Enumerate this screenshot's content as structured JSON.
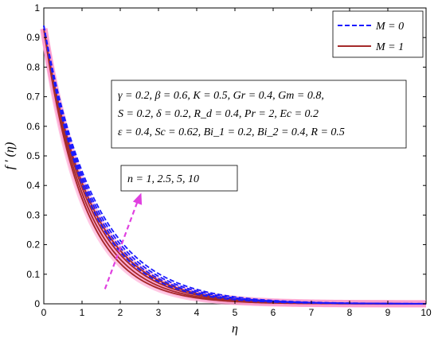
{
  "chart_data": {
    "type": "line",
    "xlabel": "η",
    "ylabel": "f ′ (η)",
    "xlim": [
      0,
      10
    ],
    "ylim": [
      0,
      1
    ],
    "x_ticks": [
      "0",
      "1",
      "2",
      "3",
      "4",
      "5",
      "6",
      "7",
      "8",
      "9",
      "10"
    ],
    "y_ticks": [
      "0",
      "0.1",
      "0.2",
      "0.3",
      "0.4",
      "0.5",
      "0.6",
      "0.7",
      "0.8",
      "0.9",
      "1"
    ],
    "legend": {
      "placement": "top-right",
      "entries": [
        {
          "label": "M = 0",
          "color": "#1a1aff",
          "dash": true
        },
        {
          "label": "M = 1",
          "color": "#a52a2a",
          "dash": false
        }
      ]
    },
    "parameters": [
      "γ = 0.2, β = 0.6, K = 0.5, Gr = 0.4, Gm = 0.8,",
      "S = 0.2, δ = 0.2, R_d = 0.4, Pr = 2, Ec = 0.2",
      "ε = 0.4, Sc = 0.62, Bi_1 = 0.2, Bi_2 = 0.4, R = 0.5"
    ],
    "annotation": "n = 1, 2.5, 5, 10",
    "n_values": [
      1,
      2.5,
      5,
      10
    ],
    "series": [
      {
        "group": "M = 0",
        "n": 1,
        "color": "#1a1aff",
        "dash": true,
        "f0": 0.94,
        "decay": 0.84
      },
      {
        "group": "M = 0",
        "n": 2.5,
        "color": "#1a1aff",
        "dash": true,
        "f0": 0.94,
        "decay": 0.8
      },
      {
        "group": "M = 0",
        "n": 5,
        "color": "#1a1aff",
        "dash": true,
        "f0": 0.94,
        "decay": 0.77
      },
      {
        "group": "M = 0",
        "n": 10,
        "color": "#1a1aff",
        "dash": true,
        "f0": 0.94,
        "decay": 0.74
      },
      {
        "group": "M = 1",
        "n": 1,
        "color": "#a52a2a",
        "dash": false,
        "f0": 0.93,
        "decay": 0.96
      },
      {
        "group": "M = 1",
        "n": 2.5,
        "color": "#a52a2a",
        "dash": false,
        "f0": 0.93,
        "decay": 0.91
      },
      {
        "group": "M = 1",
        "n": 5,
        "color": "#a52a2a",
        "dash": false,
        "f0": 0.93,
        "decay": 0.86
      },
      {
        "group": "M = 1",
        "n": 10,
        "color": "#a52a2a",
        "dash": false,
        "f0": 0.93,
        "decay": 0.82
      }
    ],
    "arrow_color": "#e040e0",
    "glow_color": "#ff99cc"
  }
}
